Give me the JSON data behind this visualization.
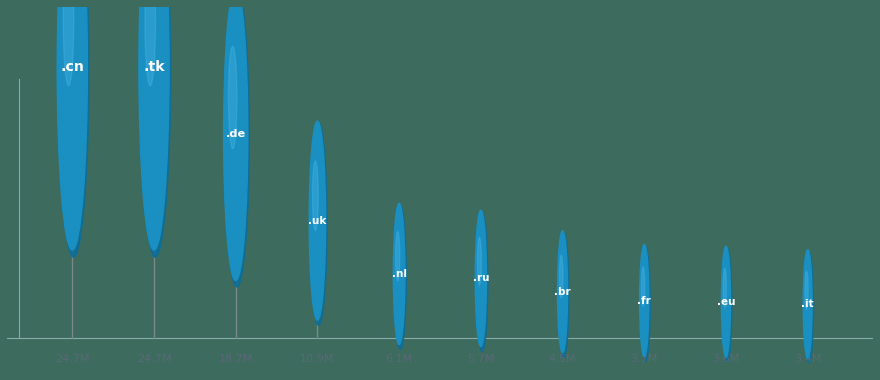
{
  "categories": [
    ".cn",
    ".tk",
    ".de",
    ".uk",
    ".nl",
    ".ru",
    ".br",
    ".fr",
    ".eu",
    ".it"
  ],
  "values": [
    24.7,
    24.7,
    18.7,
    10.9,
    6.1,
    5.7,
    4.5,
    3.7,
    3.6,
    3.4
  ],
  "x_labels": [
    "24.7M",
    "24.7M",
    "18.7M",
    "10.9M",
    "6.1M",
    "5.7M",
    "4.5M",
    "3.7M",
    "3.6M",
    "3.4M"
  ],
  "bubble_color": "#1a8fc1",
  "bubble_color_dark": "#0d6e9a",
  "stem_color": "#7a8a8a",
  "text_color": "#ffffff",
  "label_color": "#5a6878",
  "background_color": "#3d6b5e",
  "axis_color": "#8aabaa",
  "max_bubble_size": 2200,
  "min_bubble_size": 600
}
